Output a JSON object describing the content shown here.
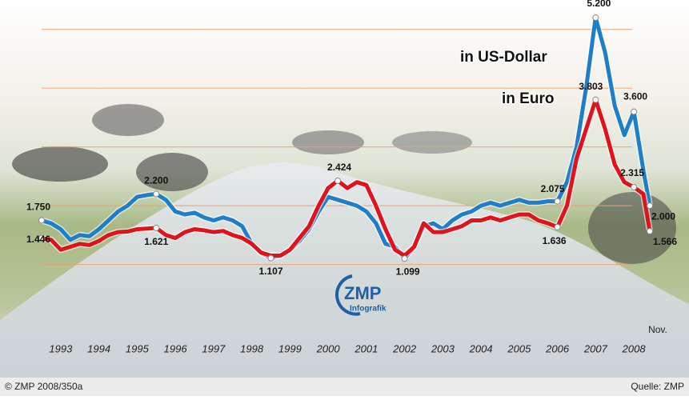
{
  "chart_data": {
    "type": "line",
    "x": [
      1993,
      1993.25,
      1993.5,
      1993.75,
      1994,
      1994.25,
      1994.5,
      1994.75,
      1995,
      1995.25,
      1995.5,
      1995.75,
      1996,
      1996.25,
      1996.5,
      1996.75,
      1997,
      1997.25,
      1997.5,
      1997.75,
      1998,
      1998.25,
      1998.5,
      1998.75,
      1999,
      1999.25,
      1999.5,
      1999.75,
      2000,
      2000.25,
      2000.5,
      2000.75,
      2001,
      2001.25,
      2001.5,
      2001.75,
      2002,
      2002.25,
      2002.5,
      2002.75,
      2003,
      2003.25,
      2003.5,
      2003.75,
      2004,
      2004.25,
      2004.5,
      2004.75,
      2005,
      2005.25,
      2005.5,
      2005.75,
      2006,
      2006.25,
      2006.5,
      2006.75,
      2007,
      2007.25,
      2007.5,
      2007.75,
      2008,
      2008.25,
      2008.5,
      2008.75,
      2008.917
    ],
    "series": [
      {
        "name": "in US-Dollar",
        "color": "#1e7fc8",
        "values": [
          1750,
          1700,
          1600,
          1420,
          1500,
          1480,
          1600,
          1750,
          1900,
          2000,
          2150,
          2180,
          2200,
          2100,
          1900,
          1850,
          1880,
          1800,
          1750,
          1800,
          1750,
          1650,
          1350,
          1200,
          1107,
          1150,
          1250,
          1400,
          1600,
          1900,
          2150,
          2100,
          2050,
          2000,
          1900,
          1700,
          1350,
          1300,
          1099,
          1300,
          1650,
          1700,
          1600,
          1750,
          1850,
          1900,
          2000,
          2050,
          2000,
          2050,
          2100,
          2050,
          2050,
          2075,
          2075,
          2400,
          3000,
          4000,
          5200,
          4600,
          3700,
          3200,
          3600,
          2600,
          2000
        ],
        "value_labels": [
          "1.750",
          null,
          null,
          null,
          null,
          null,
          null,
          null,
          null,
          null,
          null,
          null,
          "2.200",
          null,
          null,
          null,
          null,
          null,
          null,
          null,
          null,
          null,
          null,
          null,
          "1.107",
          null,
          null,
          null,
          null,
          null,
          null,
          null,
          null,
          null,
          null,
          null,
          null,
          null,
          "1.099",
          null,
          null,
          null,
          null,
          null,
          null,
          null,
          null,
          null,
          null,
          null,
          null,
          null,
          null,
          null,
          "2.075",
          null,
          null,
          null,
          "5.200",
          null,
          null,
          null,
          "3.600",
          null,
          "2.000"
        ]
      },
      {
        "name": "in Euro",
        "color": "#e0121b",
        "values": [
          1446,
          1420,
          1250,
          1300,
          1350,
          1330,
          1400,
          1500,
          1550,
          1560,
          1600,
          1610,
          1621,
          1500,
          1450,
          1550,
          1600,
          1580,
          1550,
          1570,
          1500,
          1450,
          1350,
          1200,
          1150,
          1150,
          1250,
          1450,
          1650,
          2000,
          2300,
          2424,
          2300,
          2400,
          2350,
          2000,
          1600,
          1250,
          1150,
          1300,
          1700,
          1550,
          1550,
          1600,
          1650,
          1750,
          1750,
          1800,
          1750,
          1800,
          1850,
          1850,
          1750,
          1700,
          1636,
          2000,
          2800,
          3300,
          3803,
          3300,
          2700,
          2400,
          2315,
          2200,
          1566
        ],
        "value_labels": [
          "1.446",
          null,
          null,
          null,
          null,
          null,
          null,
          null,
          null,
          null,
          null,
          null,
          "1.621",
          null,
          null,
          null,
          null,
          null,
          null,
          null,
          null,
          null,
          null,
          null,
          null,
          null,
          null,
          null,
          null,
          null,
          null,
          "2.424",
          null,
          null,
          null,
          null,
          null,
          null,
          null,
          null,
          null,
          null,
          null,
          null,
          null,
          null,
          null,
          null,
          null,
          null,
          null,
          null,
          null,
          null,
          "1.636",
          null,
          null,
          null,
          "3.803",
          null,
          null,
          null,
          "2.315",
          null,
          "1.566"
        ]
      }
    ],
    "xlim": [
      1993,
      2008.917
    ],
    "xticks": [
      {
        "value": 1993.5,
        "label": "1993"
      },
      {
        "value": 1994.5,
        "label": "1994"
      },
      {
        "value": 1995.5,
        "label": "1995"
      },
      {
        "value": 1996.5,
        "label": "1996"
      },
      {
        "value": 1997.5,
        "label": "1997"
      },
      {
        "value": 1998.5,
        "label": "1998"
      },
      {
        "value": 1999.5,
        "label": "1999"
      },
      {
        "value": 2000.5,
        "label": "2000"
      },
      {
        "value": 2001.5,
        "label": "2001"
      },
      {
        "value": 2002.5,
        "label": "2002"
      },
      {
        "value": 2003.5,
        "label": "2003"
      },
      {
        "value": 2004.5,
        "label": "2004"
      },
      {
        "value": 2005.5,
        "label": "2005"
      },
      {
        "value": 2006.5,
        "label": "2006"
      },
      {
        "value": 2007.5,
        "label": "2007"
      },
      {
        "value": 2008.5,
        "label": "2008"
      }
    ],
    "x_end_label": "Nov.",
    "ylim": [
      0,
      5500
    ],
    "yticks": [
      1000,
      2000,
      3000,
      4000,
      5000
    ],
    "grid": true,
    "logo": "ZMP",
    "logo_subtitle": "Infografik",
    "footer_left": "© ZMP 2008/350a",
    "footer_right": "Quelle: ZMP"
  }
}
